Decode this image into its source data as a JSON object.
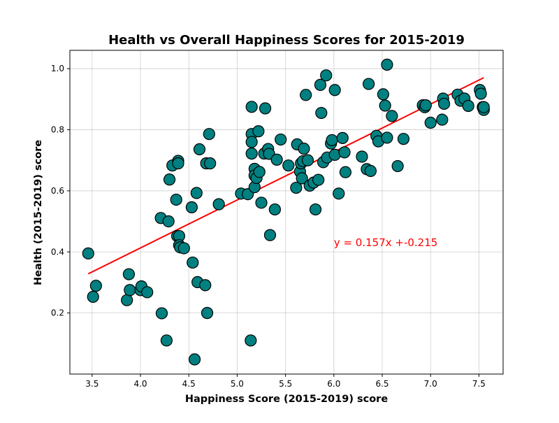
{
  "chart_data": {
    "type": "scatter",
    "title": "Health vs Overall Happiness Scores for 2015-2019",
    "xlabel": "Happiness Score (2015-2019) score",
    "ylabel": "Health (2015-2019) score",
    "xlim": [
      3.27,
      7.75
    ],
    "ylim": [
      0.0,
      1.06
    ],
    "xticks": [
      3.5,
      4.0,
      4.5,
      5.0,
      5.5,
      6.0,
      6.5,
      7.0,
      7.5
    ],
    "xtick_labels": [
      "3.5",
      "4.0",
      "4.5",
      "5.0",
      "5.5",
      "6.0",
      "6.5",
      "7.0",
      "7.5"
    ],
    "yticks": [
      0.2,
      0.4,
      0.6,
      0.8,
      1.0
    ],
    "ytick_labels": [
      "0.2",
      "0.4",
      "0.6",
      "0.8",
      "1.0"
    ],
    "grid": true,
    "marker_color": "#008080",
    "marker_edge_color": "#000000",
    "regression": {
      "slope": 0.157,
      "intercept": -0.215,
      "x_range": [
        3.46,
        7.55
      ],
      "color": "#ff0000",
      "equation_label": "y = 0.157x +-0.215",
      "label_anchor": [
        6.0,
        0.43
      ]
    },
    "points": [
      [
        3.46,
        0.395
      ],
      [
        3.51,
        0.253
      ],
      [
        3.54,
        0.289
      ],
      [
        3.86,
        0.242
      ],
      [
        3.88,
        0.327
      ],
      [
        3.89,
        0.275
      ],
      [
        4.0,
        0.275
      ],
      [
        4.01,
        0.287
      ],
      [
        4.07,
        0.268
      ],
      [
        4.21,
        0.511
      ],
      [
        4.22,
        0.199
      ],
      [
        4.27,
        0.11
      ],
      [
        4.29,
        0.5
      ],
      [
        4.3,
        0.637
      ],
      [
        4.33,
        0.683
      ],
      [
        4.37,
        0.571
      ],
      [
        4.38,
        0.452
      ],
      [
        4.39,
        0.698
      ],
      [
        4.39,
        0.69
      ],
      [
        4.4,
        0.452
      ],
      [
        4.4,
        0.422
      ],
      [
        4.41,
        0.415
      ],
      [
        4.45,
        0.412
      ],
      [
        4.53,
        0.546
      ],
      [
        4.54,
        0.365
      ],
      [
        4.56,
        0.048
      ],
      [
        4.58,
        0.593
      ],
      [
        4.59,
        0.301
      ],
      [
        4.61,
        0.736
      ],
      [
        4.67,
        0.291
      ],
      [
        4.68,
        0.69
      ],
      [
        4.69,
        0.2
      ],
      [
        4.71,
        0.786
      ],
      [
        4.72,
        0.69
      ],
      [
        4.81,
        0.556
      ],
      [
        5.04,
        0.591
      ],
      [
        5.11,
        0.589
      ],
      [
        5.14,
        0.11
      ],
      [
        5.15,
        0.875
      ],
      [
        5.15,
        0.786
      ],
      [
        5.15,
        0.76
      ],
      [
        5.15,
        0.722
      ],
      [
        5.18,
        0.672
      ],
      [
        5.18,
        0.65
      ],
      [
        5.18,
        0.612
      ],
      [
        5.2,
        0.642
      ],
      [
        5.22,
        0.795
      ],
      [
        5.23,
        0.662
      ],
      [
        5.25,
        0.561
      ],
      [
        5.28,
        0.722
      ],
      [
        5.29,
        0.87
      ],
      [
        5.32,
        0.737
      ],
      [
        5.33,
        0.721
      ],
      [
        5.34,
        0.455
      ],
      [
        5.39,
        0.539
      ],
      [
        5.41,
        0.702
      ],
      [
        5.45,
        0.768
      ],
      [
        5.53,
        0.683
      ],
      [
        5.61,
        0.61
      ],
      [
        5.62,
        0.752
      ],
      [
        5.65,
        0.663
      ],
      [
        5.66,
        0.69
      ],
      [
        5.67,
        0.641
      ],
      [
        5.68,
        0.697
      ],
      [
        5.69,
        0.738
      ],
      [
        5.71,
        0.914
      ],
      [
        5.73,
        0.7
      ],
      [
        5.75,
        0.617
      ],
      [
        5.79,
        0.627
      ],
      [
        5.81,
        0.539
      ],
      [
        5.84,
        0.636
      ],
      [
        5.86,
        0.947
      ],
      [
        5.87,
        0.855
      ],
      [
        5.89,
        0.694
      ],
      [
        5.92,
        0.978
      ],
      [
        5.93,
        0.709
      ],
      [
        5.97,
        0.755
      ],
      [
        5.98,
        0.766
      ],
      [
        6.01,
        0.93
      ],
      [
        6.01,
        0.718
      ],
      [
        6.05,
        0.591
      ],
      [
        6.09,
        0.773
      ],
      [
        6.11,
        0.726
      ],
      [
        6.12,
        0.661
      ],
      [
        6.29,
        0.712
      ],
      [
        6.34,
        0.671
      ],
      [
        6.36,
        0.95
      ],
      [
        6.38,
        0.665
      ],
      [
        6.44,
        0.78
      ],
      [
        6.46,
        0.762
      ],
      [
        6.51,
        0.916
      ],
      [
        6.53,
        0.879
      ],
      [
        6.55,
        0.774
      ],
      [
        6.55,
        1.013
      ],
      [
        6.6,
        0.845
      ],
      [
        6.66,
        0.681
      ],
      [
        6.72,
        0.77
      ],
      [
        6.92,
        0.88
      ],
      [
        6.94,
        0.874
      ],
      [
        6.95,
        0.88
      ],
      [
        7.0,
        0.823
      ],
      [
        7.12,
        0.833
      ],
      [
        7.13,
        0.902
      ],
      [
        7.14,
        0.885
      ],
      [
        7.28,
        0.915
      ],
      [
        7.31,
        0.895
      ],
      [
        7.35,
        0.902
      ],
      [
        7.39,
        0.878
      ],
      [
        7.51,
        0.93
      ],
      [
        7.52,
        0.918
      ],
      [
        7.54,
        0.874
      ],
      [
        7.55,
        0.865
      ],
      [
        7.55,
        0.874
      ]
    ]
  }
}
